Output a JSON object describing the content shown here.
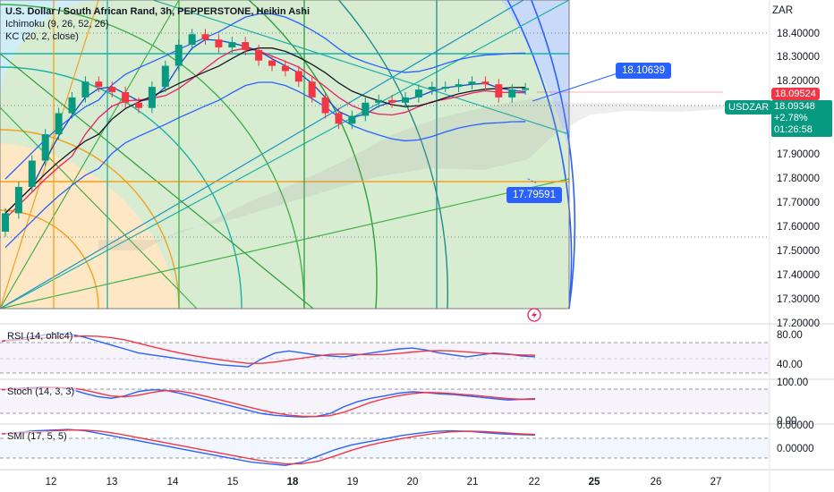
{
  "legend": {
    "title": "U.S. Dollar / South African Rand, 3h, PEPPERSTONE, Heikin Ashi",
    "ichimoku": "Ichimoku (9, 26, 52, 26)",
    "kc": "KC (20, 2, close)"
  },
  "currency": "ZAR",
  "symbol_tag": "USDZAR",
  "price_tag": {
    "current": "18.09524",
    "last": "18.09348",
    "change": "+2.78%",
    "countdown": "01:26:58"
  },
  "annotations": {
    "upper": "18.10639",
    "lower": "17.79591"
  },
  "price_axis": [
    "18.40000",
    "18.30000",
    "18.20000",
    "17.90000",
    "17.80000",
    "17.70000",
    "17.60000",
    "17.50000",
    "17.40000",
    "17.30000",
    "17.20000"
  ],
  "time_axis": [
    "12",
    "13",
    "14",
    "15",
    "18",
    "19",
    "20",
    "21",
    "22",
    "25",
    "26",
    "27"
  ],
  "indicators": {
    "rsi": {
      "label": "RSI (14, ohlc4)",
      "levels": [
        "80.00",
        "40.00"
      ]
    },
    "stoch": {
      "label": "Stoch (14, 3, 3)",
      "levels": [
        "100.00",
        "0.00"
      ]
    },
    "smi": {
      "label": "SMI (17, 5, 5)",
      "levels": [
        "0.00000",
        "0.00000"
      ]
    }
  },
  "colors": {
    "up": "#089981",
    "down": "#f23645",
    "kc": "#2962ff",
    "tenkan": "#1848cc",
    "kijun": "#e91e63",
    "accent": "#2962ff"
  },
  "chart_data": {
    "type": "candlestick",
    "title": "U.S. Dollar / South African Rand, 3h, PEPPERSTONE, Heikin Ashi",
    "ylim": [
      17.2,
      18.45
    ],
    "x_ticks": [
      "12",
      "13",
      "14",
      "15",
      "18",
      "19",
      "20",
      "21",
      "22"
    ],
    "candles": [
      {
        "o": 17.55,
        "c": 17.62
      },
      {
        "o": 17.62,
        "c": 17.72
      },
      {
        "o": 17.72,
        "c": 17.82
      },
      {
        "o": 17.82,
        "c": 17.92
      },
      {
        "o": 17.92,
        "c": 18.0
      },
      {
        "o": 18.0,
        "c": 18.06
      },
      {
        "o": 18.06,
        "c": 18.12
      },
      {
        "o": 18.12,
        "c": 18.1
      },
      {
        "o": 18.1,
        "c": 18.08
      },
      {
        "o": 18.08,
        "c": 18.04
      },
      {
        "o": 18.04,
        "c": 18.02
      },
      {
        "o": 18.02,
        "c": 18.1
      },
      {
        "o": 18.1,
        "c": 18.18
      },
      {
        "o": 18.18,
        "c": 18.26
      },
      {
        "o": 18.26,
        "c": 18.3
      },
      {
        "o": 18.3,
        "c": 18.28
      },
      {
        "o": 18.28,
        "c": 18.25
      },
      {
        "o": 18.25,
        "c": 18.27
      },
      {
        "o": 18.27,
        "c": 18.24
      },
      {
        "o": 18.24,
        "c": 18.2
      },
      {
        "o": 18.2,
        "c": 18.18
      },
      {
        "o": 18.18,
        "c": 18.16
      },
      {
        "o": 18.16,
        "c": 18.12
      },
      {
        "o": 18.12,
        "c": 18.06
      },
      {
        "o": 18.06,
        "c": 18.0
      },
      {
        "o": 18.0,
        "c": 17.96
      },
      {
        "o": 17.96,
        "c": 17.99
      },
      {
        "o": 17.99,
        "c": 18.04
      },
      {
        "o": 18.04,
        "c": 18.05
      },
      {
        "o": 18.05,
        "c": 18.04
      },
      {
        "o": 18.04,
        "c": 18.06
      },
      {
        "o": 18.06,
        "c": 18.09
      },
      {
        "o": 18.09,
        "c": 18.1
      },
      {
        "o": 18.1,
        "c": 18.1
      },
      {
        "o": 18.1,
        "c": 18.11
      },
      {
        "o": 18.11,
        "c": 18.12
      },
      {
        "o": 18.12,
        "c": 18.11
      },
      {
        "o": 18.11,
        "c": 18.06
      },
      {
        "o": 18.06,
        "c": 18.09
      },
      {
        "o": 18.09,
        "c": 18.095
      }
    ],
    "rsi": [
      70,
      72,
      74,
      76,
      78,
      77,
      74,
      70,
      66,
      62,
      58,
      56,
      54,
      52,
      50,
      48,
      46,
      45,
      44,
      52,
      58,
      60,
      58,
      56,
      55,
      54,
      56,
      58,
      60,
      62,
      63,
      61,
      58,
      56,
      54,
      56,
      58,
      57,
      55,
      54
    ],
    "stoch": [
      90,
      94,
      96,
      98,
      97,
      92,
      80,
      70,
      65,
      72,
      85,
      90,
      88,
      80,
      70,
      60,
      50,
      40,
      30,
      20,
      15,
      12,
      10,
      12,
      20,
      40,
      55,
      65,
      72,
      80,
      84,
      82,
      78,
      76,
      72,
      68,
      64,
      60,
      62,
      64
    ],
    "smi": [
      30,
      35,
      40,
      42,
      44,
      40,
      30,
      20,
      10,
      0,
      -10,
      -20,
      -30,
      -40,
      -50,
      -60,
      -65,
      -70,
      -60,
      -40,
      -20,
      -5,
      5,
      15,
      25,
      32,
      38,
      40,
      38,
      34,
      30,
      28,
      26
    ]
  }
}
